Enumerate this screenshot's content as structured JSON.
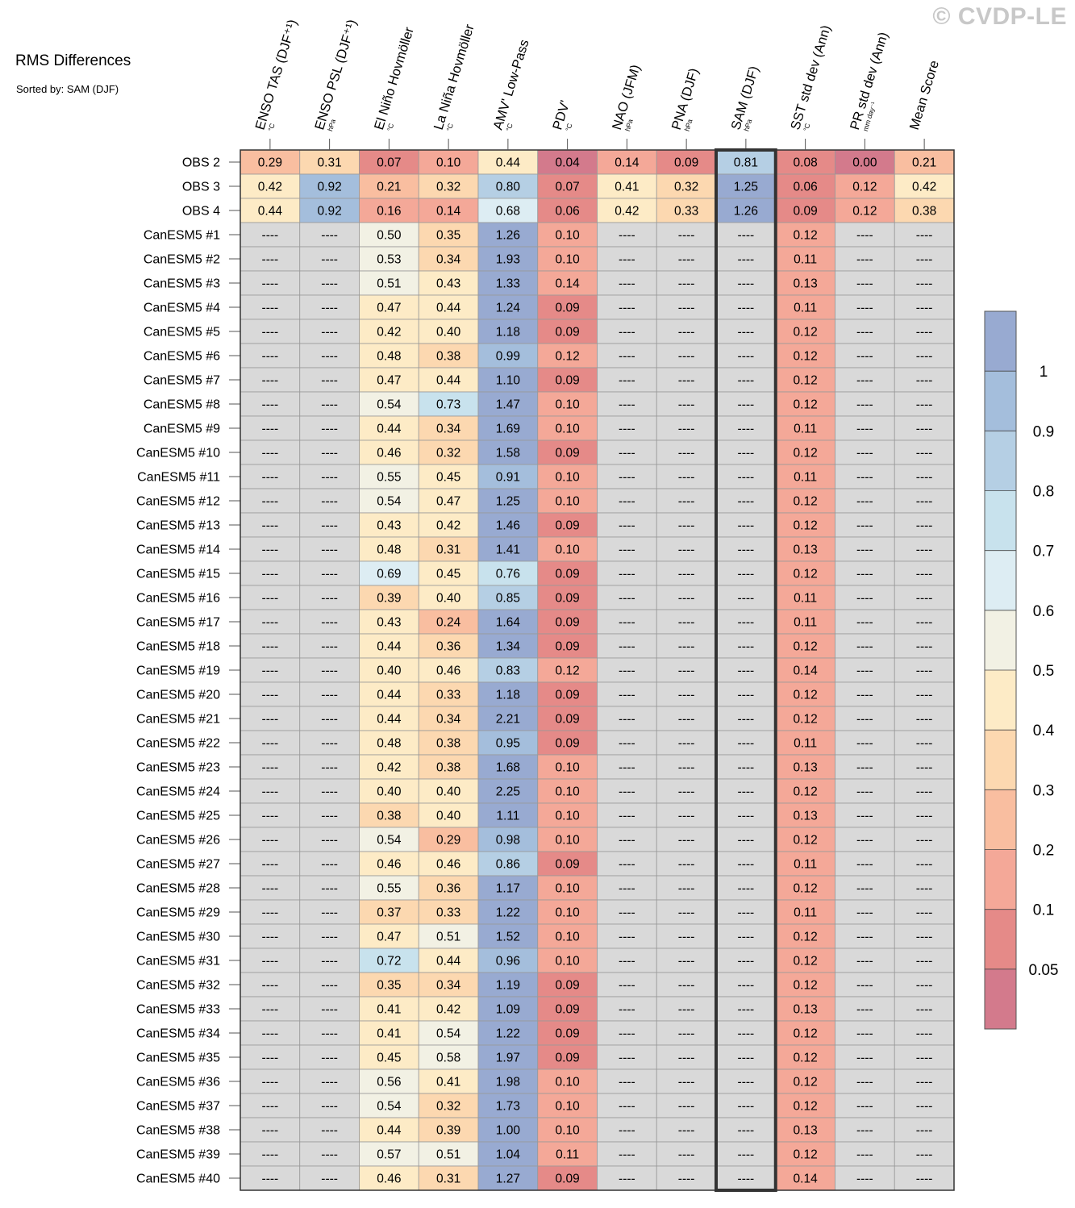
{
  "watermark": "© CVDP-LE",
  "chart_data": {
    "type": "heatmap",
    "title": "RMS Differences",
    "subtitle": "Sorted by: SAM (DJF)",
    "highlighted_column": "SAM (DJF)",
    "missing_value_text": "----",
    "columns": [
      {
        "name": "ENSO TAS (DJF⁺¹)",
        "unit": "°C"
      },
      {
        "name": "ENSO PSL (DJF⁺¹)",
        "unit": "hPa"
      },
      {
        "name": "El Niño Hovmöller",
        "unit": "°C"
      },
      {
        "name": "La Niña Hovmöller",
        "unit": "°C"
      },
      {
        "name": "AMV' Low-Pass",
        "unit": "°C"
      },
      {
        "name": "PDV'",
        "unit": "°C"
      },
      {
        "name": "NAO (JFM)",
        "unit": "hPa"
      },
      {
        "name": "PNA (DJF)",
        "unit": "hPa"
      },
      {
        "name": "SAM (DJF)",
        "unit": "hPa"
      },
      {
        "name": "SST std dev (Ann)",
        "unit": "°C"
      },
      {
        "name": "PR std dev (Ann)",
        "unit": "mm day⁻¹"
      },
      {
        "name": "Mean Score",
        "unit": ""
      }
    ],
    "rows": [
      {
        "label": "OBS 2",
        "values": [
          0.29,
          0.31,
          0.07,
          0.1,
          0.44,
          0.04,
          0.14,
          0.09,
          0.81,
          0.08,
          0.0,
          0.21
        ]
      },
      {
        "label": "OBS 3",
        "values": [
          0.42,
          0.92,
          0.21,
          0.32,
          0.8,
          0.07,
          0.41,
          0.32,
          1.25,
          0.06,
          0.12,
          0.42
        ]
      },
      {
        "label": "OBS 4",
        "values": [
          0.44,
          0.92,
          0.16,
          0.14,
          0.68,
          0.06,
          0.42,
          0.33,
          1.26,
          0.09,
          0.12,
          0.38
        ]
      },
      {
        "label": "CanESM5 #1",
        "values": [
          null,
          null,
          0.5,
          0.35,
          1.26,
          0.1,
          null,
          null,
          null,
          0.12,
          null,
          null
        ]
      },
      {
        "label": "CanESM5 #2",
        "values": [
          null,
          null,
          0.53,
          0.34,
          1.93,
          0.1,
          null,
          null,
          null,
          0.11,
          null,
          null
        ]
      },
      {
        "label": "CanESM5 #3",
        "values": [
          null,
          null,
          0.51,
          0.43,
          1.33,
          0.14,
          null,
          null,
          null,
          0.13,
          null,
          null
        ]
      },
      {
        "label": "CanESM5 #4",
        "values": [
          null,
          null,
          0.47,
          0.44,
          1.24,
          0.09,
          null,
          null,
          null,
          0.11,
          null,
          null
        ]
      },
      {
        "label": "CanESM5 #5",
        "values": [
          null,
          null,
          0.42,
          0.4,
          1.18,
          0.09,
          null,
          null,
          null,
          0.12,
          null,
          null
        ]
      },
      {
        "label": "CanESM5 #6",
        "values": [
          null,
          null,
          0.48,
          0.38,
          0.99,
          0.12,
          null,
          null,
          null,
          0.12,
          null,
          null
        ]
      },
      {
        "label": "CanESM5 #7",
        "values": [
          null,
          null,
          0.47,
          0.44,
          1.1,
          0.09,
          null,
          null,
          null,
          0.12,
          null,
          null
        ]
      },
      {
        "label": "CanESM5 #8",
        "values": [
          null,
          null,
          0.54,
          0.73,
          1.47,
          0.1,
          null,
          null,
          null,
          0.12,
          null,
          null
        ]
      },
      {
        "label": "CanESM5 #9",
        "values": [
          null,
          null,
          0.44,
          0.34,
          1.69,
          0.1,
          null,
          null,
          null,
          0.11,
          null,
          null
        ]
      },
      {
        "label": "CanESM5 #10",
        "values": [
          null,
          null,
          0.46,
          0.32,
          1.58,
          0.09,
          null,
          null,
          null,
          0.12,
          null,
          null
        ]
      },
      {
        "label": "CanESM5 #11",
        "values": [
          null,
          null,
          0.55,
          0.45,
          0.91,
          0.1,
          null,
          null,
          null,
          0.11,
          null,
          null
        ]
      },
      {
        "label": "CanESM5 #12",
        "values": [
          null,
          null,
          0.54,
          0.47,
          1.25,
          0.1,
          null,
          null,
          null,
          0.12,
          null,
          null
        ]
      },
      {
        "label": "CanESM5 #13",
        "values": [
          null,
          null,
          0.43,
          0.42,
          1.46,
          0.09,
          null,
          null,
          null,
          0.12,
          null,
          null
        ]
      },
      {
        "label": "CanESM5 #14",
        "values": [
          null,
          null,
          0.48,
          0.31,
          1.41,
          0.1,
          null,
          null,
          null,
          0.13,
          null,
          null
        ]
      },
      {
        "label": "CanESM5 #15",
        "values": [
          null,
          null,
          0.69,
          0.45,
          0.76,
          0.09,
          null,
          null,
          null,
          0.12,
          null,
          null
        ]
      },
      {
        "label": "CanESM5 #16",
        "values": [
          null,
          null,
          0.39,
          0.4,
          0.85,
          0.09,
          null,
          null,
          null,
          0.11,
          null,
          null
        ]
      },
      {
        "label": "CanESM5 #17",
        "values": [
          null,
          null,
          0.43,
          0.24,
          1.64,
          0.09,
          null,
          null,
          null,
          0.11,
          null,
          null
        ]
      },
      {
        "label": "CanESM5 #18",
        "values": [
          null,
          null,
          0.44,
          0.36,
          1.34,
          0.09,
          null,
          null,
          null,
          0.12,
          null,
          null
        ]
      },
      {
        "label": "CanESM5 #19",
        "values": [
          null,
          null,
          0.4,
          0.46,
          0.83,
          0.12,
          null,
          null,
          null,
          0.14,
          null,
          null
        ]
      },
      {
        "label": "CanESM5 #20",
        "values": [
          null,
          null,
          0.44,
          0.33,
          1.18,
          0.09,
          null,
          null,
          null,
          0.12,
          null,
          null
        ]
      },
      {
        "label": "CanESM5 #21",
        "values": [
          null,
          null,
          0.44,
          0.34,
          2.21,
          0.09,
          null,
          null,
          null,
          0.12,
          null,
          null
        ]
      },
      {
        "label": "CanESM5 #22",
        "values": [
          null,
          null,
          0.48,
          0.38,
          0.95,
          0.09,
          null,
          null,
          null,
          0.11,
          null,
          null
        ]
      },
      {
        "label": "CanESM5 #23",
        "values": [
          null,
          null,
          0.42,
          0.38,
          1.68,
          0.1,
          null,
          null,
          null,
          0.13,
          null,
          null
        ]
      },
      {
        "label": "CanESM5 #24",
        "values": [
          null,
          null,
          0.4,
          0.4,
          2.25,
          0.1,
          null,
          null,
          null,
          0.12,
          null,
          null
        ]
      },
      {
        "label": "CanESM5 #25",
        "values": [
          null,
          null,
          0.38,
          0.4,
          1.11,
          0.1,
          null,
          null,
          null,
          0.13,
          null,
          null
        ]
      },
      {
        "label": "CanESM5 #26",
        "values": [
          null,
          null,
          0.54,
          0.29,
          0.98,
          0.1,
          null,
          null,
          null,
          0.12,
          null,
          null
        ]
      },
      {
        "label": "CanESM5 #27",
        "values": [
          null,
          null,
          0.46,
          0.46,
          0.86,
          0.09,
          null,
          null,
          null,
          0.11,
          null,
          null
        ]
      },
      {
        "label": "CanESM5 #28",
        "values": [
          null,
          null,
          0.55,
          0.36,
          1.17,
          0.1,
          null,
          null,
          null,
          0.12,
          null,
          null
        ]
      },
      {
        "label": "CanESM5 #29",
        "values": [
          null,
          null,
          0.37,
          0.33,
          1.22,
          0.1,
          null,
          null,
          null,
          0.11,
          null,
          null
        ]
      },
      {
        "label": "CanESM5 #30",
        "values": [
          null,
          null,
          0.47,
          0.51,
          1.52,
          0.1,
          null,
          null,
          null,
          0.12,
          null,
          null
        ]
      },
      {
        "label": "CanESM5 #31",
        "values": [
          null,
          null,
          0.72,
          0.44,
          0.96,
          0.1,
          null,
          null,
          null,
          0.12,
          null,
          null
        ]
      },
      {
        "label": "CanESM5 #32",
        "values": [
          null,
          null,
          0.35,
          0.34,
          1.19,
          0.09,
          null,
          null,
          null,
          0.12,
          null,
          null
        ]
      },
      {
        "label": "CanESM5 #33",
        "values": [
          null,
          null,
          0.41,
          0.42,
          1.09,
          0.09,
          null,
          null,
          null,
          0.13,
          null,
          null
        ]
      },
      {
        "label": "CanESM5 #34",
        "values": [
          null,
          null,
          0.41,
          0.54,
          1.22,
          0.09,
          null,
          null,
          null,
          0.12,
          null,
          null
        ]
      },
      {
        "label": "CanESM5 #35",
        "values": [
          null,
          null,
          0.45,
          0.58,
          1.97,
          0.09,
          null,
          null,
          null,
          0.12,
          null,
          null
        ]
      },
      {
        "label": "CanESM5 #36",
        "values": [
          null,
          null,
          0.56,
          0.41,
          1.98,
          0.1,
          null,
          null,
          null,
          0.12,
          null,
          null
        ]
      },
      {
        "label": "CanESM5 #37",
        "values": [
          null,
          null,
          0.54,
          0.32,
          1.73,
          0.1,
          null,
          null,
          null,
          0.12,
          null,
          null
        ]
      },
      {
        "label": "CanESM5 #38",
        "values": [
          null,
          null,
          0.44,
          0.39,
          1.0,
          0.1,
          null,
          null,
          null,
          0.13,
          null,
          null
        ]
      },
      {
        "label": "CanESM5 #39",
        "values": [
          null,
          null,
          0.57,
          0.51,
          1.04,
          0.11,
          null,
          null,
          null,
          0.12,
          null,
          null
        ]
      },
      {
        "label": "CanESM5 #40",
        "values": [
          null,
          null,
          0.46,
          0.31,
          1.27,
          0.09,
          null,
          null,
          null,
          0.14,
          null,
          null
        ]
      }
    ],
    "colorbar": {
      "labels": [
        "1",
        "0.9",
        "0.8",
        "0.7",
        "0.6",
        "0.5",
        "0.4",
        "0.3",
        "0.2",
        "0.1",
        "0.05"
      ],
      "bounds": [
        0.05,
        0.1,
        0.2,
        0.3,
        0.4,
        0.5,
        0.6,
        0.7,
        0.8,
        0.9,
        1
      ],
      "colors": [
        "#d37a8c",
        "#e58a88",
        "#f4a898",
        "#f9bea0",
        "#fcd8b0",
        "#fdebc6",
        "#f2f1e4",
        "#ddedf3",
        "#c8e2ed",
        "#b5cfe4",
        "#a4bedc",
        "#98aad1"
      ],
      "missing_color": "#d9d9d9"
    }
  }
}
